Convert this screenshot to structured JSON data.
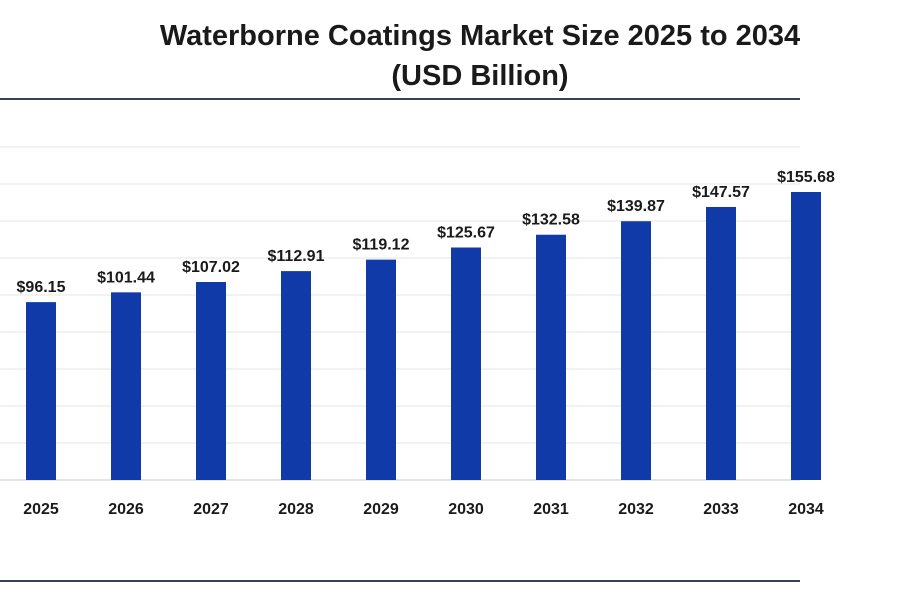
{
  "chart_data": {
    "type": "bar",
    "title": "Waterborne Coatings Market Size 2025 to 2034",
    "subtitle": "(USD Billion)",
    "xlabel": "",
    "ylabel": "",
    "categories": [
      "2025",
      "2026",
      "2027",
      "2028",
      "2029",
      "2030",
      "2031",
      "2032",
      "2033",
      "2034"
    ],
    "values": [
      96.15,
      101.44,
      107.02,
      112.91,
      119.12,
      125.67,
      132.58,
      139.87,
      147.57,
      155.68
    ],
    "value_labels": [
      "$96.15",
      "$101.44",
      "$107.02",
      "$112.91",
      "$119.12",
      "$125.67",
      "$132.58",
      "$139.87",
      "$147.57",
      "$155.68"
    ],
    "ylim": [
      0,
      180
    ],
    "grid": true,
    "legend": "none",
    "bar_color": "#0f3aa8"
  }
}
